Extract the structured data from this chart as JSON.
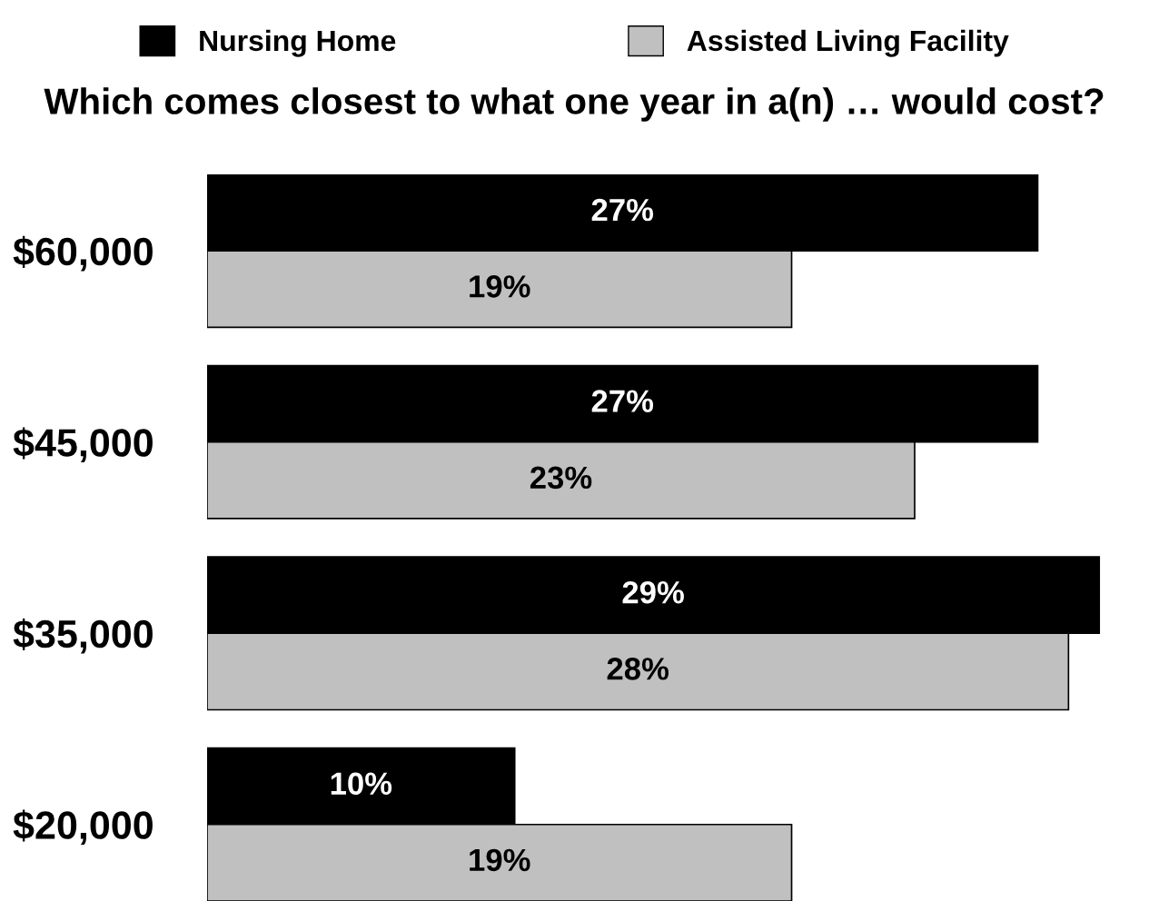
{
  "chart_data": {
    "type": "bar",
    "orientation": "horizontal",
    "title": "Which comes closest to what one year in a(n) … would cost?",
    "categories": [
      "$60,000",
      "$45,000",
      "$35,000",
      "$20,000"
    ],
    "series": [
      {
        "name": "Nursing Home",
        "color": "#000000",
        "values": [
          27,
          27,
          29,
          10
        ],
        "value_labels": [
          "27%",
          "27%",
          "29%",
          "10%"
        ]
      },
      {
        "name": "Assisted Living Facility",
        "color": "#c0c0c0",
        "values": [
          19,
          23,
          28,
          19
        ],
        "value_labels": [
          "19%",
          "23%",
          "28%",
          "19%"
        ]
      }
    ],
    "legend": "top",
    "tick_labels": "y",
    "grid": false
  }
}
